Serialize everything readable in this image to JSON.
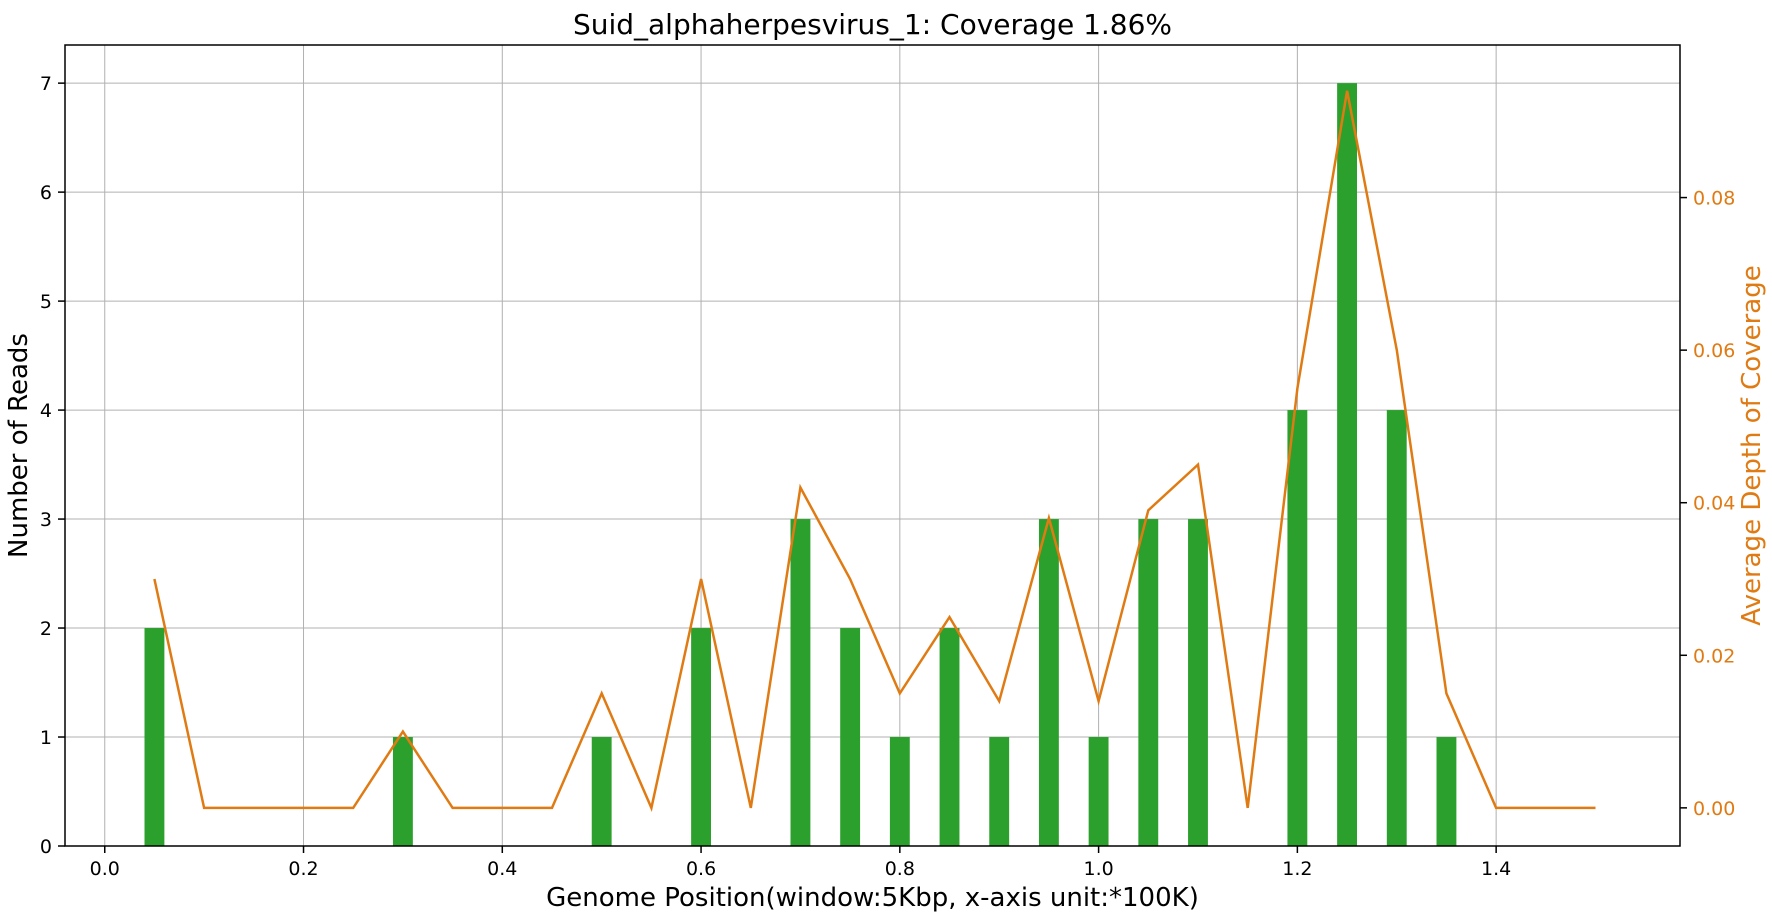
{
  "chart_data": {
    "type": "bar",
    "title": "Suid_alphaherpesvirus_1: Coverage 1.86%",
    "xlabel": "Genome Position(window:5Kbp, x-axis unit:*100K)",
    "ylabel": "Number of Reads",
    "ylabel_right": "Average Depth of Coverage",
    "xlim": [
      -0.04,
      1.585
    ],
    "ylim": [
      0,
      7.35
    ],
    "ylim_right": [
      -0.005,
      0.1
    ],
    "x_ticks": [
      "0.0",
      "0.2",
      "0.4",
      "0.6",
      "0.8",
      "1.0",
      "1.2",
      "1.4"
    ],
    "y_ticks": [
      "0",
      "1",
      "2",
      "3",
      "4",
      "5",
      "6",
      "7"
    ],
    "y_ticks_right": [
      "0.00",
      "0.02",
      "0.04",
      "0.06",
      "0.08"
    ],
    "grid": true,
    "series": [
      {
        "type": "bar",
        "axis": "left",
        "color": "#2ca02c",
        "bar_width": 0.02,
        "x": [
          0.05,
          0.3,
          0.5,
          0.6,
          0.7,
          0.75,
          0.8,
          0.85,
          0.9,
          0.95,
          1.0,
          1.05,
          1.1,
          1.2,
          1.25,
          1.3,
          1.35
        ],
        "values": [
          2,
          1,
          1,
          2,
          3,
          2,
          1,
          2,
          1,
          3,
          1,
          3,
          3,
          4,
          7,
          4,
          1
        ]
      },
      {
        "type": "line",
        "axis": "right",
        "color": "#e07b14",
        "x": [
          0.05,
          0.1,
          0.15,
          0.2,
          0.25,
          0.3,
          0.35,
          0.4,
          0.45,
          0.5,
          0.55,
          0.6,
          0.65,
          0.7,
          0.75,
          0.8,
          0.85,
          0.9,
          0.95,
          1.0,
          1.05,
          1.1,
          1.15,
          1.2,
          1.25,
          1.3,
          1.35,
          1.4,
          1.45,
          1.5
        ],
        "values": [
          0.03,
          0.0,
          0.0,
          0.0,
          0.0,
          0.01,
          0.0,
          0.0,
          0.0,
          0.015,
          0.0,
          0.03,
          0.0,
          0.042,
          0.03,
          0.015,
          0.025,
          0.014,
          0.038,
          0.014,
          0.039,
          0.045,
          0.0,
          0.055,
          0.094,
          0.06,
          0.015,
          0.0,
          0.0,
          0.0
        ]
      }
    ]
  }
}
